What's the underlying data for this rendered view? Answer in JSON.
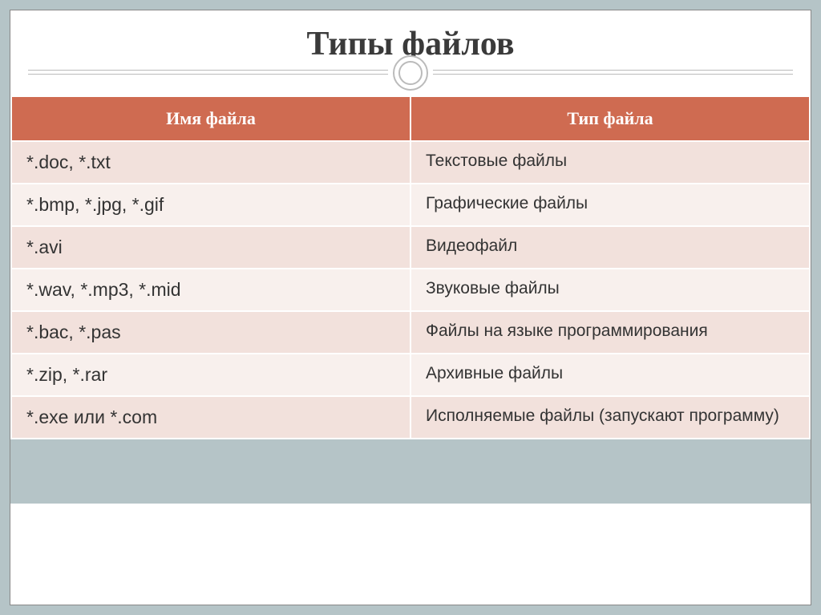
{
  "title": "Типы файлов",
  "table": {
    "header_bg": "#cf6b51",
    "header_color": "#ffffff",
    "row_odd_bg": "#f2e1dc",
    "row_even_bg": "#f8f0ed",
    "border_color": "#ffffff",
    "columns": [
      "Имя файла",
      "Тип файла"
    ],
    "rows": [
      [
        "*.doc, *.txt",
        "Текстовые файлы"
      ],
      [
        "*.bmp, *.jpg, *.gif",
        "Графические файлы"
      ],
      [
        "*.avi",
        "Видеофайл"
      ],
      [
        "*.wav, *.mp3, *.mid",
        "Звуковые файлы"
      ],
      [
        "*.bac, *.pas",
        "Файлы на языке программирования"
      ],
      [
        "*.zip, *.rar",
        "Архивные файлы"
      ],
      [
        "*.exe или *.com",
        "Исполняемые файлы (запускают программу)"
      ]
    ]
  },
  "slide_bg": "#ffffff",
  "outer_bg": "#b5c4c7",
  "title_color": "#3a3a3a",
  "title_fontsize": 42,
  "divider_color": "#bbbbbb"
}
